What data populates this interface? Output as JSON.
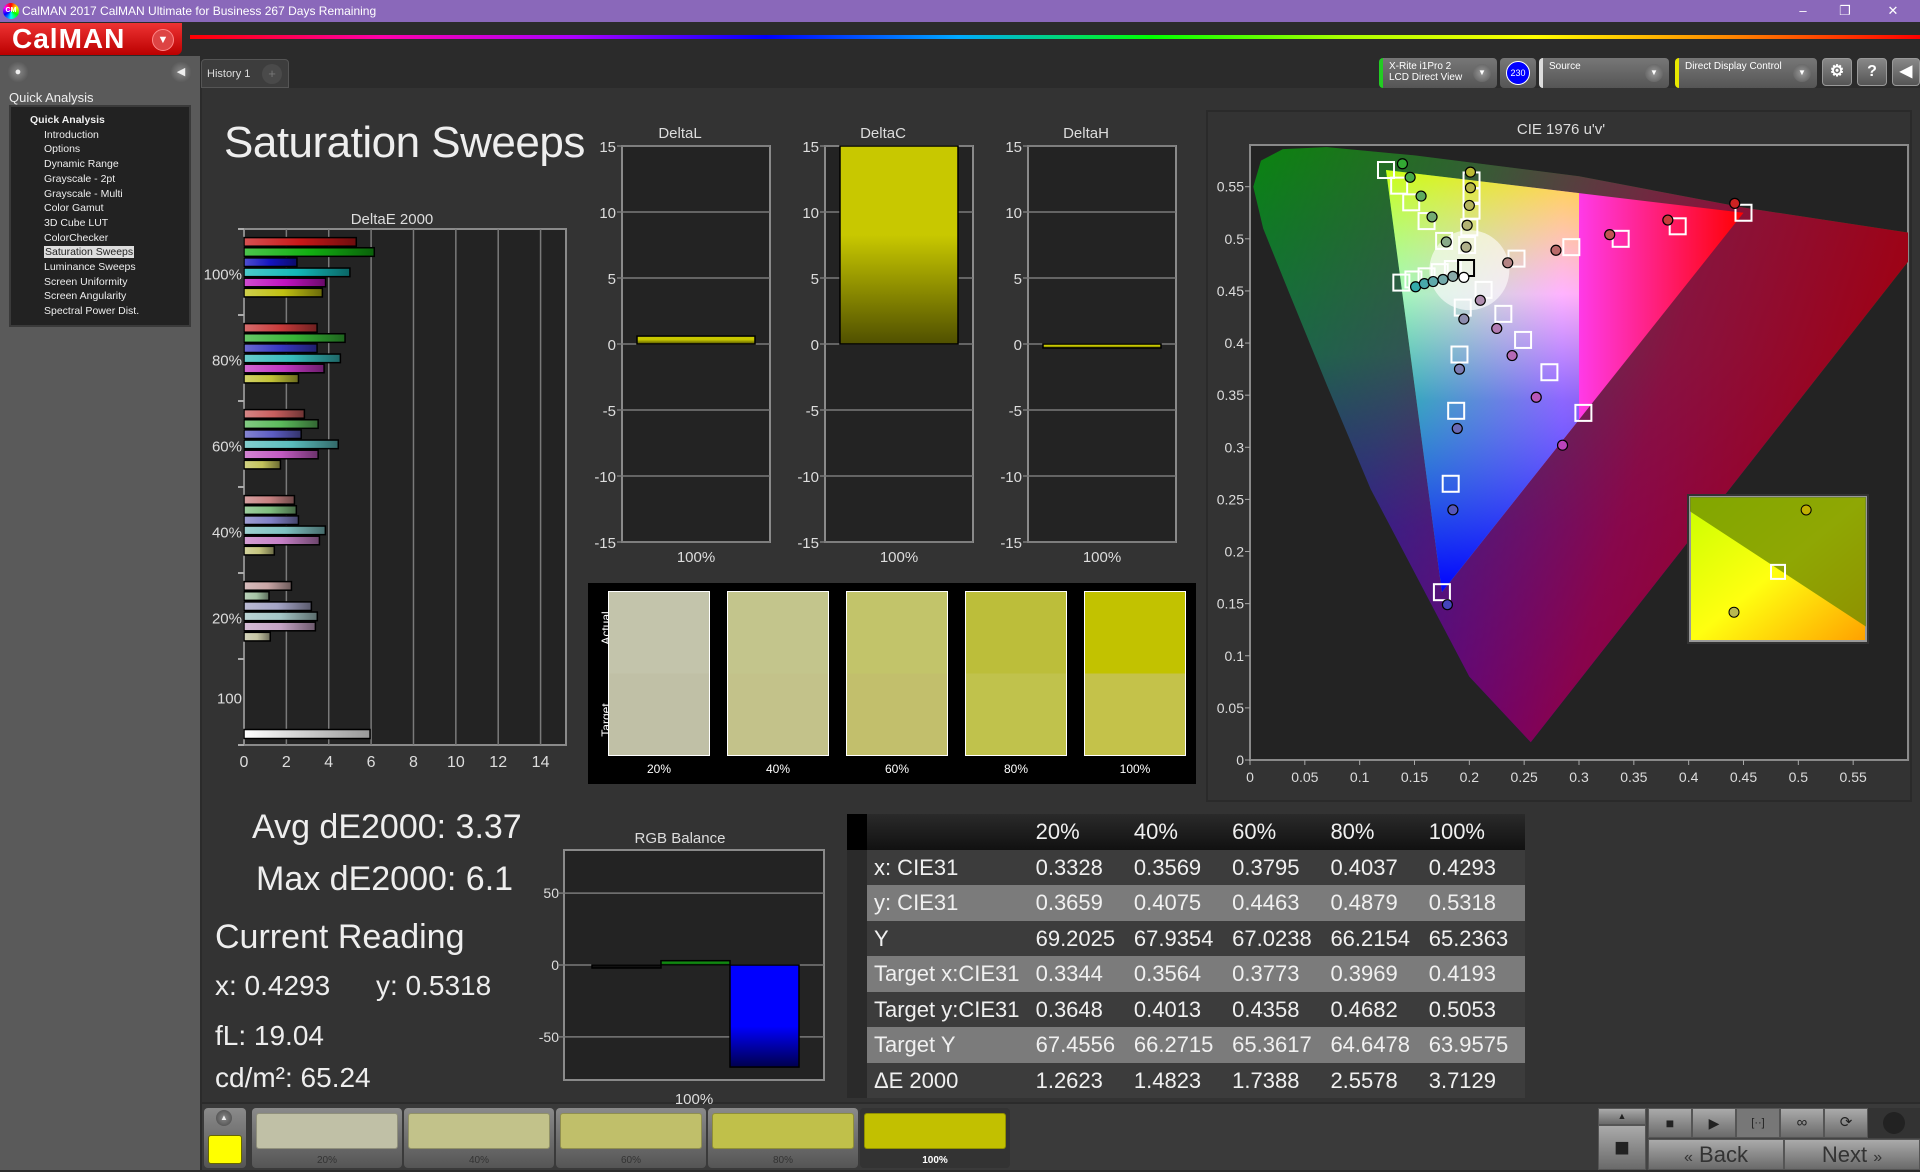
{
  "window": {
    "title": "CalMAN 2017 CalMAN Ultimate for Business 267 Days Remaining",
    "app_icon": "CM",
    "logo": "CalMAN"
  },
  "sidebar": {
    "heading": "Quick Analysis",
    "items": [
      {
        "label": "Quick Analysis",
        "root": true
      },
      {
        "label": "Introduction"
      },
      {
        "label": "Options"
      },
      {
        "label": "Dynamic Range"
      },
      {
        "label": "Grayscale - 2pt"
      },
      {
        "label": "Grayscale - Multi"
      },
      {
        "label": "Color Gamut"
      },
      {
        "label": "3D Cube LUT"
      },
      {
        "label": "ColorChecker"
      },
      {
        "label": "Saturation Sweeps",
        "selected": true
      },
      {
        "label": "Luminance Sweeps"
      },
      {
        "label": "Screen Uniformity"
      },
      {
        "label": "Screen Angularity"
      },
      {
        "label": "Spectral Power Dist."
      }
    ]
  },
  "tabs": {
    "history": "History 1",
    "add": "+"
  },
  "toolbar": {
    "meter_line1": "X-Rite i1Pro 2",
    "meter_line2": "LCD Direct View",
    "meter_badge": "230",
    "source": "Source",
    "display_control": "Direct Display Control",
    "meter_accent": "#22cc22",
    "display_accent": "#e8e800"
  },
  "page": {
    "title": "Saturation Sweeps"
  },
  "summary": {
    "avg": "Avg dE2000: 3.37",
    "max": "Max dE2000: 6.1",
    "current_heading": "Current Reading",
    "x": "x: 0.4293",
    "y": "y: 0.5318",
    "fl": "fL: 19.04",
    "cdm2": "cd/m²: 65.24"
  },
  "swatch_panel": {
    "actual_label": "Actual",
    "target_label": "Target",
    "items": [
      {
        "label": "20%",
        "actual": "#c3c4ab",
        "target": "#c0c0a6"
      },
      {
        "label": "40%",
        "actual": "#c3c58c",
        "target": "#c3c28a"
      },
      {
        "label": "60%",
        "actual": "#c2c46a",
        "target": "#c2bf6c"
      },
      {
        "label": "80%",
        "actual": "#bcbe3a",
        "target": "#c0c24c"
      },
      {
        "label": "100%",
        "actual": "#c2c200",
        "target": "#c4c24a"
      }
    ]
  },
  "table": {
    "columns": [
      "20%",
      "40%",
      "60%",
      "80%",
      "100%"
    ],
    "rows": [
      {
        "label": "x: CIE31",
        "values": [
          "0.3328",
          "0.3569",
          "0.3795",
          "0.4037",
          "0.4293"
        ]
      },
      {
        "label": "y: CIE31",
        "values": [
          "0.3659",
          "0.4075",
          "0.4463",
          "0.4879",
          "0.5318"
        ]
      },
      {
        "label": "Y",
        "values": [
          "69.2025",
          "67.9354",
          "67.0238",
          "66.2154",
          "65.2363"
        ]
      },
      {
        "label": "Target x:CIE31",
        "values": [
          "0.3344",
          "0.3564",
          "0.3773",
          "0.3969",
          "0.4193"
        ]
      },
      {
        "label": "Target y:CIE31",
        "values": [
          "0.3648",
          "0.4013",
          "0.4358",
          "0.4682",
          "0.5053"
        ]
      },
      {
        "label": "Target Y",
        "values": [
          "67.4556",
          "66.2715",
          "65.3617",
          "64.6478",
          "63.9575"
        ]
      },
      {
        "label": "ΔE 2000",
        "values": [
          "1.2623",
          "1.4823",
          "1.7388",
          "2.5578",
          "3.7129"
        ]
      }
    ]
  },
  "bottom_bar": {
    "current_color": "#ffff00",
    "swatches": [
      {
        "label": "20%",
        "color": "#c0c0a6"
      },
      {
        "label": "40%",
        "color": "#c2c28a"
      },
      {
        "label": "60%",
        "color": "#c0bf6a"
      },
      {
        "label": "80%",
        "color": "#c0c04a"
      },
      {
        "label": "100%",
        "color": "#c2c000",
        "active": true
      }
    ],
    "back": "Back",
    "next": "Next"
  },
  "chart_data": [
    {
      "type": "bar",
      "orientation": "horizontal",
      "title": "DeltaE 2000",
      "xlim": [
        0,
        15.2
      ],
      "xticks": [
        "0",
        "2",
        "4",
        "6",
        "8",
        "10",
        "12",
        "14"
      ],
      "series_colors": {
        "red": "#c81818",
        "green": "#12b012",
        "blue": "#1414c0",
        "cyan": "#12b8b8",
        "magenta": "#c012c0",
        "yellow": "#c0c012"
      },
      "groups": [
        {
          "label": "100%",
          "level": 1.0,
          "values": {
            "red": 5.3,
            "green": 6.15,
            "blue": 2.5,
            "cyan": 5.0,
            "magenta": 3.85,
            "yellow": 3.7
          }
        },
        {
          "label": "80%",
          "level": 0.8,
          "values": {
            "red": 3.45,
            "green": 4.77,
            "blue": 3.45,
            "cyan": 4.55,
            "magenta": 3.78,
            "yellow": 2.57
          }
        },
        {
          "label": "60%",
          "level": 0.6,
          "values": {
            "red": 2.85,
            "green": 3.5,
            "blue": 2.7,
            "cyan": 4.45,
            "magenta": 3.5,
            "yellow": 1.72
          }
        },
        {
          "label": "40%",
          "level": 0.4,
          "values": {
            "red": 2.38,
            "green": 2.47,
            "blue": 2.57,
            "cyan": 3.84,
            "magenta": 3.56,
            "yellow": 1.43
          }
        },
        {
          "label": "20%",
          "level": 0.2,
          "values": {
            "red": 2.24,
            "green": 1.18,
            "blue": 3.18,
            "cyan": 3.46,
            "magenta": 3.37,
            "yellow": 1.24
          }
        },
        {
          "label": "100",
          "white": 5.95
        }
      ]
    },
    {
      "type": "bar",
      "title": "DeltaL",
      "category": "100%",
      "value": 0.6,
      "ylim": [
        -15,
        15
      ],
      "yticks": [
        "15",
        "10",
        "5",
        "0",
        "-5",
        "-10",
        "-15"
      ],
      "color": "#c8c800"
    },
    {
      "type": "bar",
      "title": "DeltaC",
      "category": "100%",
      "value": 15,
      "ylim": [
        -15,
        15
      ],
      "yticks": [
        "15",
        "10",
        "5",
        "0",
        "-5",
        "-10",
        "-15"
      ],
      "color": "#c8c800"
    },
    {
      "type": "bar",
      "title": "DeltaH",
      "category": "100%",
      "value": -0.3,
      "ylim": [
        -15,
        15
      ],
      "yticks": [
        "15",
        "10",
        "5",
        "0",
        "-5",
        "-10",
        "-15"
      ],
      "color": "#c8c800"
    },
    {
      "type": "bar",
      "title": "RGB Balance",
      "category": "100%",
      "ylim": [
        -80,
        80
      ],
      "yticks": [
        "50",
        "0",
        "-50"
      ],
      "series": [
        {
          "color": "#111111",
          "value": -0.5
        },
        {
          "color": "#118811",
          "value": 3
        },
        {
          "color": "#0000ff",
          "value": -71
        }
      ]
    },
    {
      "type": "scatter",
      "title": "CIE 1976 u'v'",
      "xlim": [
        0,
        0.6
      ],
      "ylim": [
        0,
        0.59
      ],
      "xticks": [
        "0",
        "0.05",
        "0.1",
        "0.15",
        "0.2",
        "0.25",
        "0.3",
        "0.35",
        "0.4",
        "0.45",
        "0.5",
        "0.55"
      ],
      "yticks": [
        "0",
        "0.05",
        "0.1",
        "0.15",
        "0.2",
        "0.25",
        "0.3",
        "0.35",
        "0.4",
        "0.45",
        "0.5",
        "0.55"
      ],
      "levels": [
        "100%",
        "80%",
        "60%",
        "40%",
        "20%"
      ],
      "series": [
        {
          "color": "#cc2222",
          "target_u": [
            0.45,
            0.39,
            0.338,
            0.293,
            0.243
          ],
          "target_v": [
            0.525,
            0.512,
            0.5,
            0.492,
            0.481
          ],
          "u": [
            0.442,
            0.381,
            0.328,
            0.279,
            0.235
          ],
          "v": [
            0.534,
            0.518,
            0.504,
            0.489,
            0.477
          ]
        },
        {
          "color": "#33aa33",
          "target_u": [
            0.124,
            0.136,
            0.147,
            0.161,
            0.177
          ],
          "target_v": [
            0.566,
            0.551,
            0.535,
            0.517,
            0.498
          ],
          "u": [
            0.139,
            0.146,
            0.156,
            0.166,
            0.179
          ],
          "v": [
            0.572,
            0.559,
            0.541,
            0.521,
            0.497
          ]
        },
        {
          "color": "#4444bb",
          "target_u": [
            0.175,
            0.183,
            0.188,
            0.191,
            0.194
          ],
          "target_v": [
            0.161,
            0.265,
            0.335,
            0.389,
            0.434
          ],
          "u": [
            0.18,
            0.185,
            0.189,
            0.191,
            0.195
          ],
          "v": [
            0.149,
            0.24,
            0.318,
            0.375,
            0.423
          ]
        },
        {
          "color": "#33aaaa",
          "target_u": [
            0.138,
            0.149,
            0.161,
            0.173,
            0.185
          ],
          "target_v": [
            0.458,
            0.461,
            0.464,
            0.468,
            0.471
          ],
          "u": [
            0.151,
            0.159,
            0.167,
            0.176,
            0.185
          ],
          "v": [
            0.454,
            0.457,
            0.459,
            0.461,
            0.464
          ]
        },
        {
          "color": "#bb44bb",
          "target_u": [
            0.304,
            0.273,
            0.249,
            0.231,
            0.213
          ],
          "target_v": [
            0.333,
            0.372,
            0.403,
            0.428,
            0.451
          ],
          "u": [
            0.285,
            0.261,
            0.239,
            0.225,
            0.21
          ],
          "v": [
            0.302,
            0.348,
            0.388,
            0.414,
            0.441
          ]
        },
        {
          "color": "#bbbb33",
          "target_u": [
            0.202,
            0.202,
            0.202,
            0.2,
            0.198
          ],
          "target_v": [
            0.556,
            0.541,
            0.527,
            0.511,
            0.494
          ],
          "u": [
            0.201,
            0.201,
            0.2,
            0.198,
            0.197
          ],
          "v": [
            0.564,
            0.549,
            0.532,
            0.513,
            0.492
          ]
        },
        {
          "color": "#ffffff",
          "target_u": [
            0.197
          ],
          "target_v": [
            0.472
          ],
          "u": [
            0.195
          ],
          "v": [
            0.463
          ]
        }
      ]
    }
  ]
}
